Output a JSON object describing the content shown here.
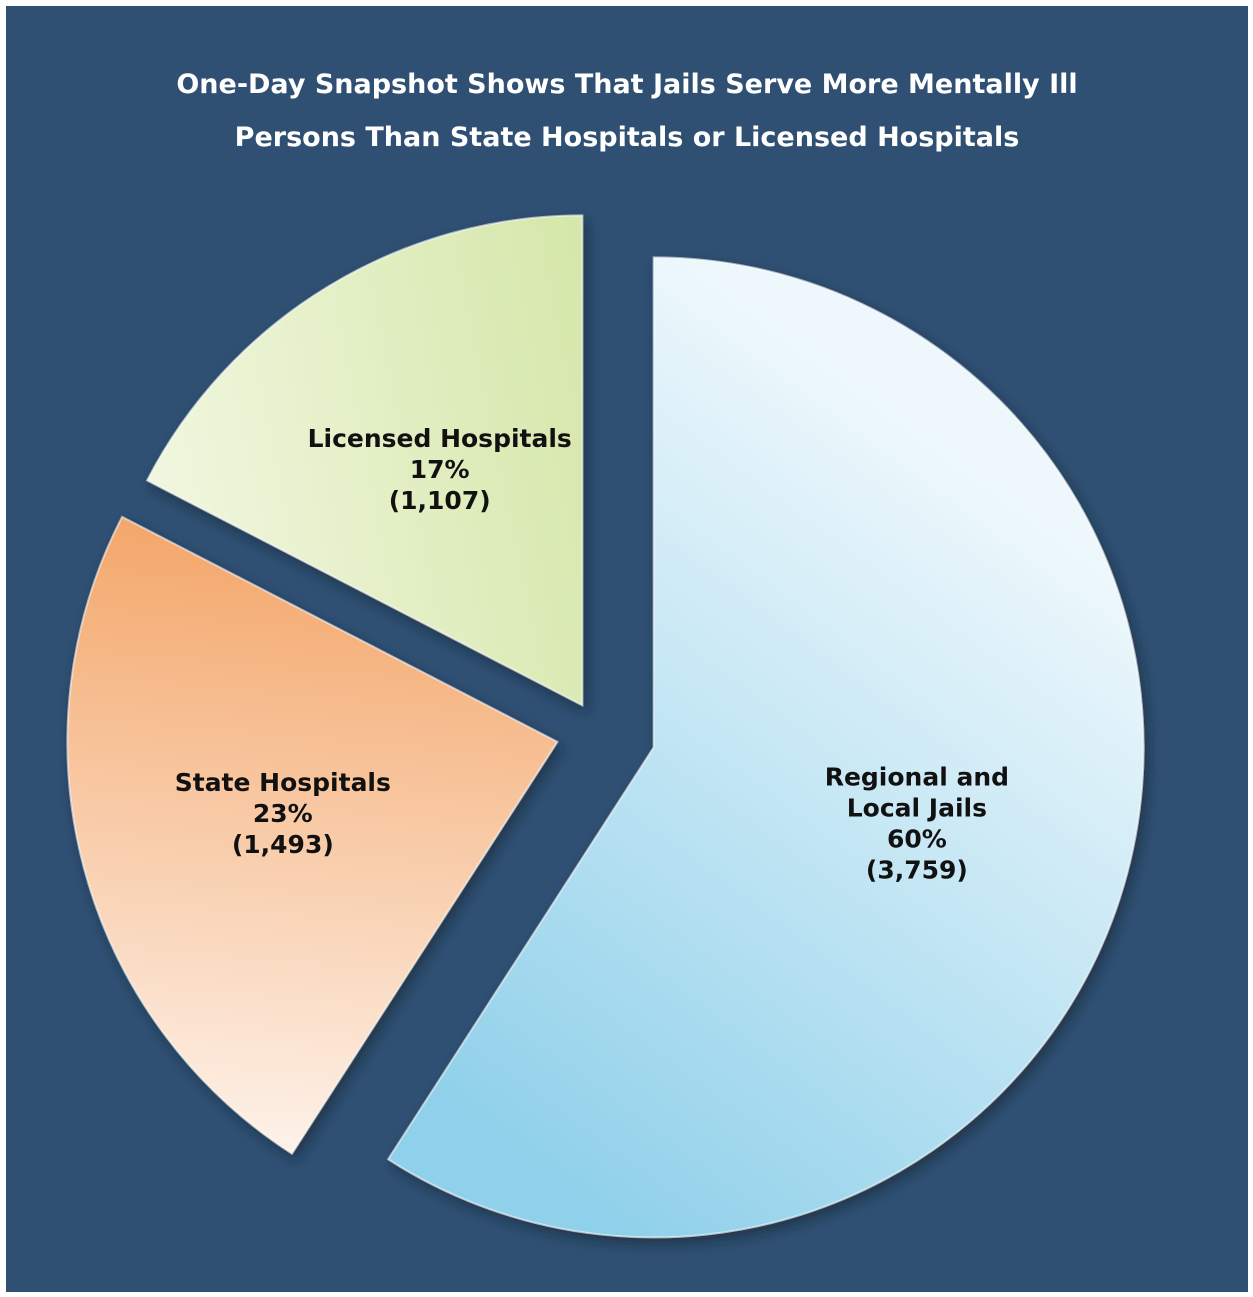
{
  "chart_data": {
    "type": "pie",
    "title_lines": [
      "One-Day Snapshot Shows That Jails Serve More Mentally Ill",
      "Persons Than State Hospitals or Licensed Hospitals"
    ],
    "slices": [
      {
        "label_lines": [
          "Regional and",
          "Local Jails"
        ],
        "percent_label": "60%",
        "count_label": "(3,759)",
        "value": 3759,
        "percent": 60,
        "color": "#8fd0ea",
        "color_light": "#eef8fc"
      },
      {
        "label_lines": [
          "State Hospitals"
        ],
        "percent_label": "23%",
        "count_label": "(1,493)",
        "value": 1493,
        "percent": 23,
        "color": "#f08a3a",
        "color_light": "#fdf0e6"
      },
      {
        "label_lines": [
          "Licensed Hospitals"
        ],
        "percent_label": "17%",
        "count_label": "(1,107)",
        "value": 1107,
        "percent": 17,
        "color": "#c2dc84",
        "color_light": "#f3f8e4"
      }
    ]
  },
  "colors": {
    "background": "#2f5073",
    "title": "#ffffff"
  }
}
